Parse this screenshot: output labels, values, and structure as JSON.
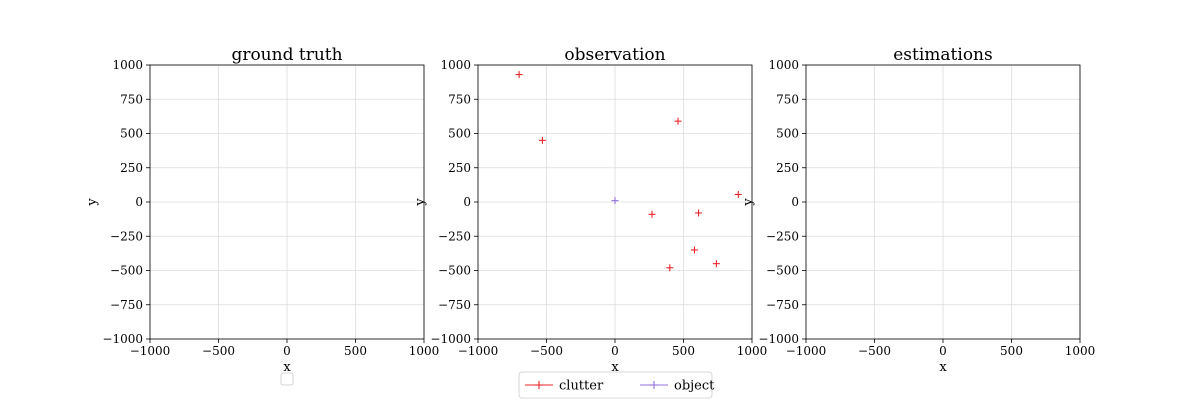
{
  "chart_data": [
    {
      "type": "scatter",
      "title": "ground truth",
      "xlabel": "x",
      "ylabel": "y",
      "xlim": [
        -1000,
        1000
      ],
      "ylim": [
        -1000,
        1000
      ],
      "xticks": [
        -1000,
        -500,
        0,
        500,
        1000
      ],
      "yticks": [
        -1000,
        -750,
        -500,
        -250,
        0,
        250,
        500,
        750,
        1000
      ],
      "grid": true,
      "series": [],
      "legend": {
        "placement": "below",
        "entries": []
      }
    },
    {
      "type": "scatter",
      "title": "observation",
      "xlabel": "x",
      "ylabel": "y",
      "xlim": [
        -1000,
        1000
      ],
      "ylim": [
        -1000,
        1000
      ],
      "xticks": [
        -1000,
        -500,
        0,
        500,
        1000
      ],
      "yticks": [
        -1000,
        -750,
        -500,
        -250,
        0,
        250,
        500,
        750,
        1000
      ],
      "grid": true,
      "series": [
        {
          "name": "clutter",
          "color": "#e8262b",
          "marker": "plus",
          "points": [
            [
              -700,
              930
            ],
            [
              -530,
              450
            ],
            [
              460,
              590
            ],
            [
              270,
              -90
            ],
            [
              610,
              -80
            ],
            [
              900,
              55
            ],
            [
              580,
              -350
            ],
            [
              400,
              -480
            ],
            [
              740,
              -450
            ]
          ]
        },
        {
          "name": "object",
          "color": "#9370db",
          "marker": "plus",
          "points": [
            [
              0,
              10
            ]
          ]
        }
      ],
      "legend": {
        "placement": "below",
        "entries": [
          "clutter",
          "object"
        ]
      }
    },
    {
      "type": "scatter",
      "title": "estimations",
      "xlabel": "x",
      "ylabel": "y",
      "xlim": [
        -1000,
        1000
      ],
      "ylim": [
        -1000,
        1000
      ],
      "xticks": [
        -1000,
        -500,
        0,
        500,
        1000
      ],
      "yticks": [
        -1000,
        -750,
        -500,
        -250,
        0,
        250,
        500,
        750,
        1000
      ],
      "grid": true,
      "series": []
    }
  ]
}
